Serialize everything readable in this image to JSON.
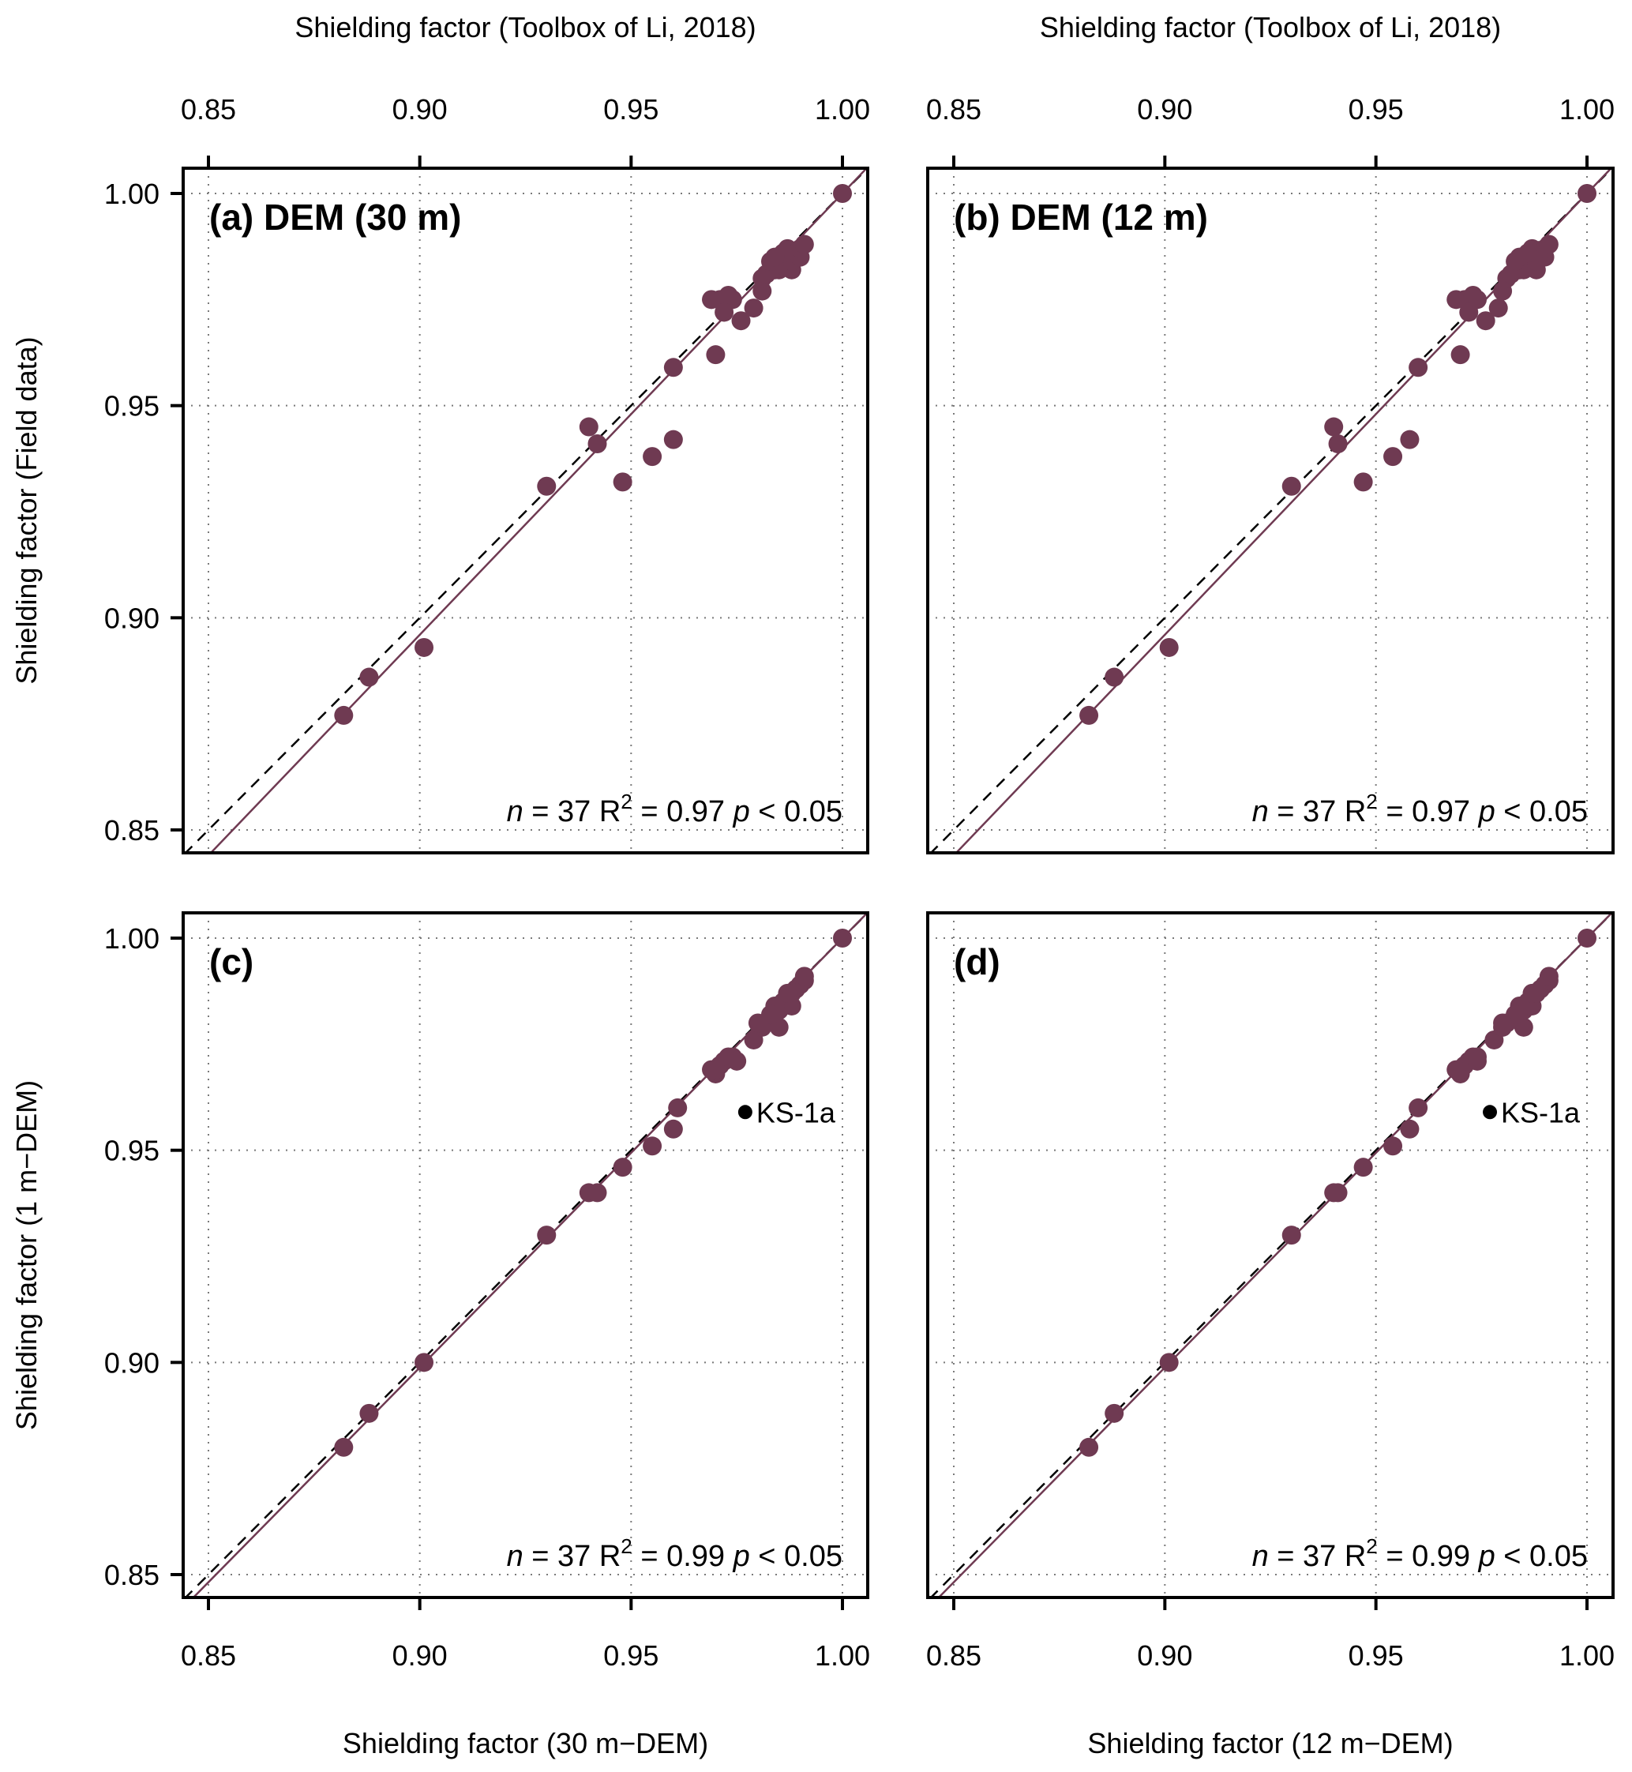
{
  "chart_data": [
    {
      "type": "scatter",
      "panel": "a",
      "title": "(a) DEM (30 m)",
      "xlabel": "Shielding factor (Toolbox of Li, 2018)",
      "xlabel_position": "top",
      "ylabel": "Shielding factor (Field data)",
      "xlim": [
        0.844,
        1.006
      ],
      "ylim": [
        0.844,
        1.006
      ],
      "xticks": [
        "0.85",
        "0.90",
        "0.95",
        "1.00"
      ],
      "yticks": [
        "0.85",
        "0.90",
        "0.95",
        "1.00"
      ],
      "grid": true,
      "point_color": "#6f3a52",
      "regression_color": "#6f3a52",
      "regression": {
        "slope": 1.04,
        "intercept": -0.04
      },
      "one_to_one_line": true,
      "stats": {
        "n": "37",
        "r2": "0.97",
        "p": "< 0.05"
      },
      "points": [
        [
          0.882,
          0.877
        ],
        [
          0.888,
          0.886
        ],
        [
          0.901,
          0.893
        ],
        [
          0.93,
          0.931
        ],
        [
          0.94,
          0.945
        ],
        [
          0.942,
          0.941
        ],
        [
          0.948,
          0.932
        ],
        [
          0.955,
          0.938
        ],
        [
          0.96,
          0.942
        ],
        [
          0.96,
          0.959
        ],
        [
          0.97,
          0.962
        ],
        [
          0.969,
          0.975
        ],
        [
          0.971,
          0.975
        ],
        [
          0.973,
          0.976
        ],
        [
          0.974,
          0.975
        ],
        [
          0.972,
          0.972
        ],
        [
          0.976,
          0.97
        ],
        [
          0.979,
          0.973
        ],
        [
          0.981,
          0.977
        ],
        [
          0.981,
          0.98
        ],
        [
          0.982,
          0.981
        ],
        [
          0.984,
          0.982
        ],
        [
          0.985,
          0.984
        ],
        [
          0.985,
          0.982
        ],
        [
          0.986,
          0.983
        ],
        [
          0.987,
          0.985
        ],
        [
          0.987,
          0.987
        ],
        [
          0.988,
          0.982
        ],
        [
          0.988,
          0.984
        ],
        [
          0.989,
          0.986
        ],
        [
          0.99,
          0.985
        ],
        [
          0.99,
          0.987
        ],
        [
          0.991,
          0.988
        ],
        [
          0.986,
          0.986
        ],
        [
          0.983,
          0.984
        ],
        [
          0.984,
          0.985
        ],
        [
          1.0,
          1.0
        ]
      ]
    },
    {
      "type": "scatter",
      "panel": "b",
      "title": "(b) DEM (12 m)",
      "xlabel": "Shielding factor (Toolbox of Li, 2018)",
      "xlabel_position": "top",
      "ylabel": "",
      "xlim": [
        0.844,
        1.006
      ],
      "ylim": [
        0.844,
        1.006
      ],
      "xticks": [
        "0.85",
        "0.90",
        "0.95",
        "1.00"
      ],
      "yticks": [],
      "grid": true,
      "point_color": "#6f3a52",
      "regression_color": "#6f3a52",
      "regression": {
        "slope": 1.04,
        "intercept": -0.04
      },
      "one_to_one_line": true,
      "stats": {
        "n": "37",
        "r2": "0.97",
        "p": "< 0.05"
      },
      "points": [
        [
          0.882,
          0.877
        ],
        [
          0.888,
          0.886
        ],
        [
          0.901,
          0.893
        ],
        [
          0.93,
          0.931
        ],
        [
          0.94,
          0.945
        ],
        [
          0.941,
          0.941
        ],
        [
          0.947,
          0.932
        ],
        [
          0.954,
          0.938
        ],
        [
          0.958,
          0.942
        ],
        [
          0.96,
          0.959
        ],
        [
          0.97,
          0.962
        ],
        [
          0.969,
          0.975
        ],
        [
          0.971,
          0.975
        ],
        [
          0.973,
          0.976
        ],
        [
          0.974,
          0.975
        ],
        [
          0.972,
          0.972
        ],
        [
          0.976,
          0.97
        ],
        [
          0.979,
          0.973
        ],
        [
          0.98,
          0.977
        ],
        [
          0.981,
          0.98
        ],
        [
          0.982,
          0.981
        ],
        [
          0.984,
          0.982
        ],
        [
          0.985,
          0.984
        ],
        [
          0.985,
          0.982
        ],
        [
          0.986,
          0.983
        ],
        [
          0.987,
          0.985
        ],
        [
          0.987,
          0.987
        ],
        [
          0.988,
          0.982
        ],
        [
          0.988,
          0.984
        ],
        [
          0.989,
          0.986
        ],
        [
          0.99,
          0.985
        ],
        [
          0.99,
          0.987
        ],
        [
          0.991,
          0.988
        ],
        [
          0.986,
          0.986
        ],
        [
          0.983,
          0.984
        ],
        [
          0.984,
          0.985
        ],
        [
          1.0,
          1.0
        ]
      ]
    },
    {
      "type": "scatter",
      "panel": "c",
      "title": "(c)",
      "xlabel": "Shielding factor (30 m−DEM)",
      "xlabel_position": "bottom",
      "ylabel": "Shielding factor (1 m−DEM)",
      "xlim": [
        0.844,
        1.006
      ],
      "ylim": [
        0.844,
        1.006
      ],
      "xticks": [
        "0.85",
        "0.90",
        "0.95",
        "1.00"
      ],
      "yticks": [
        "0.85",
        "0.90",
        "0.95",
        "1.00"
      ],
      "grid": true,
      "point_color": "#6f3a52",
      "regression_color": "#6f3a52",
      "regression": {
        "slope": 1.012,
        "intercept": -0.012
      },
      "one_to_one_line": true,
      "stats": {
        "n": "37",
        "r2": "0.99",
        "p": "< 0.05"
      },
      "annotation": {
        "label": "KS-1a",
        "x": 0.977,
        "y": 0.959
      },
      "points": [
        [
          0.882,
          0.88
        ],
        [
          0.888,
          0.888
        ],
        [
          0.901,
          0.9
        ],
        [
          0.93,
          0.93
        ],
        [
          0.94,
          0.94
        ],
        [
          0.942,
          0.94
        ],
        [
          0.948,
          0.946
        ],
        [
          0.955,
          0.951
        ],
        [
          0.96,
          0.955
        ],
        [
          0.961,
          0.96
        ],
        [
          0.97,
          0.968
        ],
        [
          0.97,
          0.969
        ],
        [
          0.971,
          0.97
        ],
        [
          0.972,
          0.971
        ],
        [
          0.973,
          0.972
        ],
        [
          0.974,
          0.972
        ],
        [
          0.975,
          0.971
        ],
        [
          0.979,
          0.976
        ],
        [
          0.981,
          0.979
        ],
        [
          0.982,
          0.98
        ],
        [
          0.985,
          0.979
        ],
        [
          0.985,
          0.983
        ],
        [
          0.986,
          0.985
        ],
        [
          0.986,
          0.984
        ],
        [
          0.987,
          0.986
        ],
        [
          0.988,
          0.984
        ],
        [
          0.988,
          0.987
        ],
        [
          0.989,
          0.988
        ],
        [
          0.99,
          0.989
        ],
        [
          0.991,
          0.99
        ],
        [
          0.991,
          0.991
        ],
        [
          0.987,
          0.987
        ],
        [
          0.984,
          0.984
        ],
        [
          0.983,
          0.982
        ],
        [
          0.98,
          0.98
        ],
        [
          0.969,
          0.969
        ],
        [
          1.0,
          1.0
        ]
      ]
    },
    {
      "type": "scatter",
      "panel": "d",
      "title": "(d)",
      "xlabel": "Shielding factor (12 m−DEM)",
      "xlabel_position": "bottom",
      "ylabel": "",
      "xlim": [
        0.844,
        1.006
      ],
      "ylim": [
        0.844,
        1.006
      ],
      "xticks": [
        "0.85",
        "0.90",
        "0.95",
        "1.00"
      ],
      "yticks": [],
      "grid": true,
      "point_color": "#6f3a52",
      "regression_color": "#6f3a52",
      "regression": {
        "slope": 1.012,
        "intercept": -0.012
      },
      "one_to_one_line": true,
      "stats": {
        "n": "37",
        "r2": "0.99",
        "p": "< 0.05"
      },
      "annotation": {
        "label": "KS-1a",
        "x": 0.977,
        "y": 0.959
      },
      "points": [
        [
          0.882,
          0.88
        ],
        [
          0.888,
          0.888
        ],
        [
          0.901,
          0.9
        ],
        [
          0.93,
          0.93
        ],
        [
          0.94,
          0.94
        ],
        [
          0.941,
          0.94
        ],
        [
          0.947,
          0.946
        ],
        [
          0.954,
          0.951
        ],
        [
          0.958,
          0.955
        ],
        [
          0.96,
          0.96
        ],
        [
          0.97,
          0.968
        ],
        [
          0.97,
          0.969
        ],
        [
          0.971,
          0.97
        ],
        [
          0.972,
          0.971
        ],
        [
          0.973,
          0.972
        ],
        [
          0.974,
          0.972
        ],
        [
          0.974,
          0.971
        ],
        [
          0.978,
          0.976
        ],
        [
          0.98,
          0.979
        ],
        [
          0.981,
          0.98
        ],
        [
          0.985,
          0.979
        ],
        [
          0.985,
          0.983
        ],
        [
          0.986,
          0.985
        ],
        [
          0.986,
          0.984
        ],
        [
          0.987,
          0.986
        ],
        [
          0.987,
          0.984
        ],
        [
          0.988,
          0.987
        ],
        [
          0.989,
          0.988
        ],
        [
          0.99,
          0.989
        ],
        [
          0.991,
          0.99
        ],
        [
          0.991,
          0.991
        ],
        [
          0.987,
          0.987
        ],
        [
          0.984,
          0.984
        ],
        [
          0.983,
          0.982
        ],
        [
          0.98,
          0.98
        ],
        [
          0.969,
          0.969
        ],
        [
          1.0,
          1.0
        ]
      ]
    }
  ]
}
